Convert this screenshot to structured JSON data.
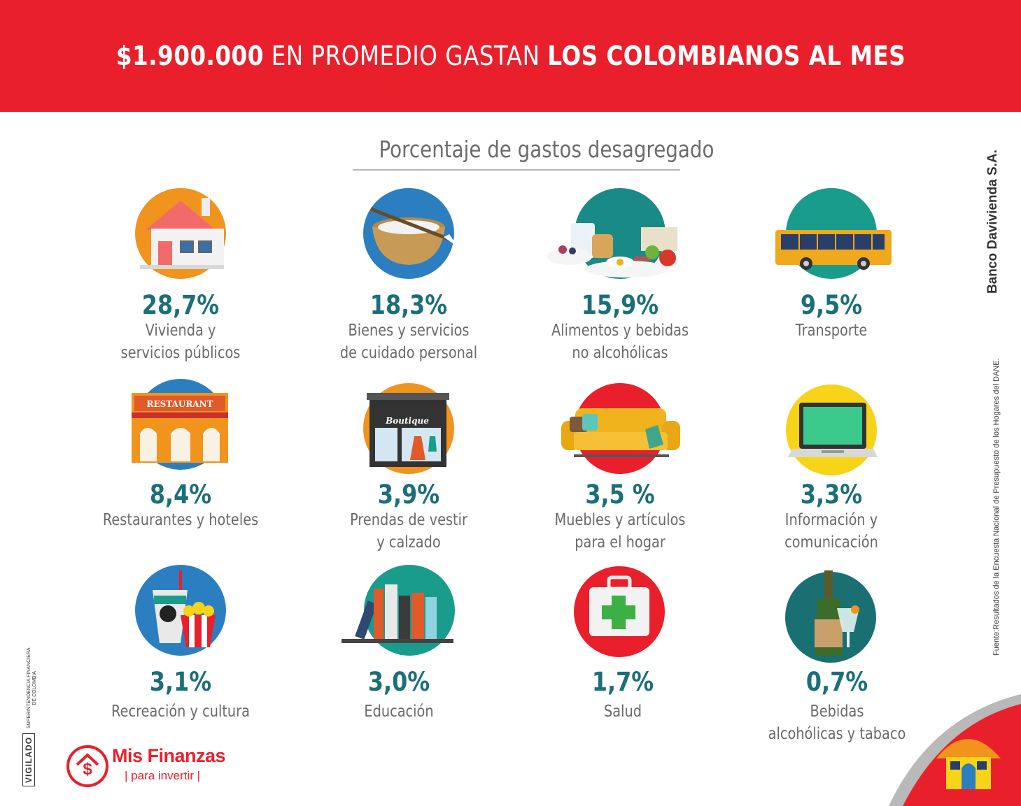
{
  "header": {
    "title_bold_1": "$1.900.000",
    "title_regular": " EN PROMEDIO GASTAN ",
    "title_bold_2": "LOS COLOMBIANOS AL MES"
  },
  "subtitle": "Porcentaje de gastos desagregado",
  "items": [
    {
      "pct": "28,7%",
      "line1": "Vivienda y",
      "line2": "servicios públicos",
      "icon": "house-icon",
      "color": "#f0941d"
    },
    {
      "pct": "18,3%",
      "line1": "Bienes y servicios",
      "line2": "de cuidado personal",
      "icon": "mortar-bowl-icon",
      "color": "#2b7fc1"
    },
    {
      "pct": "15,9%",
      "line1": "Alimentos y bebidas",
      "line2": "no alcohólicas",
      "icon": "breakfast-food-icon",
      "color": "#1a8a86"
    },
    {
      "pct": "9,5%",
      "line1": "Transporte",
      "line2": "",
      "icon": "bus-icon",
      "color": "#1a9c8c"
    },
    {
      "pct": "8,4%",
      "line1": "Restaurantes y hoteles",
      "line2": "",
      "icon": "restaurant-icon",
      "color": "#2b7fc1"
    },
    {
      "pct": "3,9%",
      "line1": "Prendas de vestir",
      "line2": "y calzado",
      "icon": "boutique-icon",
      "color": "#f0941d"
    },
    {
      "pct": "3,5 %",
      "line1": "Muebles y artículos",
      "line2": "para el hogar",
      "icon": "sofa-icon",
      "color": "#e9202c"
    },
    {
      "pct": "3,3%",
      "line1": "Información y",
      "line2": "comunicación",
      "icon": "laptop-icon",
      "color": "#f7d417"
    },
    {
      "pct": "3,1%",
      "line1": "Recreación y cultura",
      "line2": "",
      "icon": "popcorn-soda-icon",
      "color": "#2b7fc1"
    },
    {
      "pct": "3,0%",
      "line1": "Educación",
      "line2": "",
      "icon": "books-icon",
      "color": "#1a9c8c"
    },
    {
      "pct": "1,7%",
      "line1": "Salud",
      "line2": "",
      "icon": "first-aid-kit-icon",
      "color": "#e9202c"
    },
    {
      "pct": "0,7%",
      "line1": "Bebidas",
      "line2": "alcohólicas y tabaco",
      "icon": "bottle-drink-icon",
      "color": "#1a6f73"
    }
  ],
  "restaurant_sign": "RESTAURANT",
  "boutique_sign": "Boutique",
  "side_brand": "Banco Davivienda S.A.",
  "source": "Fuente:Resultados de la Encuesta Nacional de Presupuesto de los Hogares del DANE.",
  "vigilado": "VIGILADO",
  "superfinanciera_1": "SUPERINTENDENCIA FINANCIERA",
  "superfinanciera_2": "DE COLOMBIA",
  "logo": {
    "name": "Mis Finanzas",
    "tagline": "para invertir",
    "symbol": "$"
  },
  "colors": {
    "header_red": "#e9202c",
    "pct_teal": "#1a6f7b",
    "label_gray": "#6a6a6a"
  }
}
